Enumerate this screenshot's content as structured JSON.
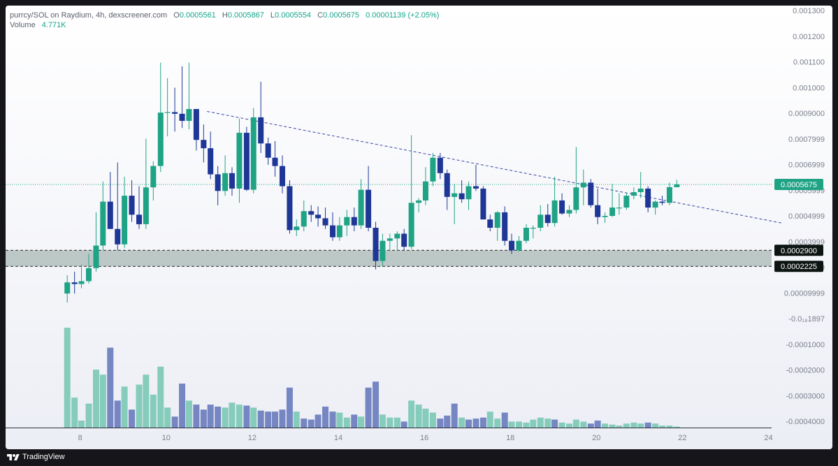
{
  "header": {
    "symbol_line": "purrcy/SOL on Raydium, 4h, dexscreener.com",
    "o_label": "O",
    "o_value": "0.0005561",
    "h_label": "H",
    "h_value": "0.0005867",
    "l_label": "L",
    "l_value": "0.0005554",
    "c_label": "C",
    "c_value": "0.0005675",
    "change": "0.00001139 (+2.05%)",
    "volume_label": "Volume",
    "volume_value": "4.771K"
  },
  "footer": {
    "brand": "TradingView"
  },
  "colors": {
    "up": "#1fa385",
    "down": "#1e3696",
    "vol_up": "#86ccbb",
    "vol_down": "#7586c3",
    "support_zone": "#a9b8b4",
    "trendline": "#3a46a0"
  },
  "chart_data": {
    "type": "candlestick",
    "timeframe": "4h",
    "y_tick_labels": [
      "0.001300",
      "0.001200",
      "0.001100",
      "0.001000",
      "0.0009000",
      "0.0007999",
      "0.0006999",
      "0.0005999",
      "0.0004999",
      "0.0003999",
      "0.0001999",
      "0.00009999",
      "-0.0₁₈1897",
      "-0.0001000",
      "-0.0002000",
      "-0.0003000",
      "-0.0004000"
    ],
    "x_tick_labels": [
      "8",
      "10",
      "12",
      "14",
      "16",
      "18",
      "20",
      "22",
      "24"
    ],
    "ylim": [
      -0.00043,
      0.0013
    ],
    "xlim": [
      7.55,
      24.3
    ],
    "price_tags": [
      {
        "label": "0.0005675",
        "value": 0.0005675,
        "style": "last"
      },
      {
        "label": "0.0002900",
        "value": 0.00029,
        "style": "level"
      },
      {
        "label": "0.0002225",
        "value": 0.0002225,
        "style": "level"
      }
    ],
    "support_zone": [
      0.0002225,
      0.00029
    ],
    "trendline": {
      "x0": 10.95,
      "y0": 0.000875,
      "x1": 24.3,
      "y1": 0.000405
    },
    "candles": [
      {
        "x": 7.7,
        "o": 0.000108,
        "h": 0.000185,
        "l": 7e-05,
        "c": 0.000155
      },
      {
        "x": 7.87,
        "o": 0.000155,
        "h": 0.0002,
        "l": 0.000108,
        "c": 0.000148
      },
      {
        "x": 8.03,
        "o": 0.000148,
        "h": 0.00023,
        "l": 0.00013,
        "c": 0.00016
      },
      {
        "x": 8.2,
        "o": 0.00016,
        "h": 0.000275,
        "l": 0.00015,
        "c": 0.000215
      },
      {
        "x": 8.37,
        "o": 0.000215,
        "h": 0.00045,
        "l": 0.0002,
        "c": 0.00031
      },
      {
        "x": 8.53,
        "o": 0.00031,
        "h": 0.00058,
        "l": 0.00029,
        "c": 0.000495
      },
      {
        "x": 8.7,
        "o": 0.000495,
        "h": 0.00062,
        "l": 0.00038,
        "c": 0.00038
      },
      {
        "x": 8.87,
        "o": 0.00038,
        "h": 0.00066,
        "l": 0.00029,
        "c": 0.000315
      },
      {
        "x": 9.03,
        "o": 0.000315,
        "h": 0.0006,
        "l": 0.0003,
        "c": 0.00052
      },
      {
        "x": 9.2,
        "o": 0.00052,
        "h": 0.000585,
        "l": 0.00041,
        "c": 0.00044
      },
      {
        "x": 9.37,
        "o": 0.00044,
        "h": 0.00056,
        "l": 0.00038,
        "c": 0.0004
      },
      {
        "x": 9.53,
        "o": 0.0004,
        "h": 0.00076,
        "l": 0.00038,
        "c": 0.000555
      },
      {
        "x": 9.7,
        "o": 0.000555,
        "h": 0.000665,
        "l": 0.0005,
        "c": 0.000645
      },
      {
        "x": 9.87,
        "o": 0.000645,
        "h": 0.00108,
        "l": 0.00062,
        "c": 0.00087
      },
      {
        "x": 10.03,
        "o": 0.00087,
        "h": 0.001015,
        "l": 0.00077,
        "c": 0.000872
      },
      {
        "x": 10.2,
        "o": 0.000872,
        "h": 0.000975,
        "l": 0.00079,
        "c": 0.000865
      },
      {
        "x": 10.37,
        "o": 0.000865,
        "h": 0.001065,
        "l": 0.000805,
        "c": 0.000835
      },
      {
        "x": 10.53,
        "o": 0.000835,
        "h": 0.00108,
        "l": 0.0008,
        "c": 0.000885
      },
      {
        "x": 10.7,
        "o": 0.000885,
        "h": 0.000885,
        "l": 0.00071,
        "c": 0.000755
      },
      {
        "x": 10.87,
        "o": 0.000755,
        "h": 0.00082,
        "l": 0.00066,
        "c": 0.00072
      },
      {
        "x": 11.03,
        "o": 0.00072,
        "h": 0.00079,
        "l": 0.00059,
        "c": 0.00061
      },
      {
        "x": 11.2,
        "o": 0.00061,
        "h": 0.000645,
        "l": 0.00048,
        "c": 0.00054
      },
      {
        "x": 11.37,
        "o": 0.00054,
        "h": 0.00069,
        "l": 0.00052,
        "c": 0.000615
      },
      {
        "x": 11.53,
        "o": 0.000615,
        "h": 0.00064,
        "l": 0.00052,
        "c": 0.00055
      },
      {
        "x": 11.7,
        "o": 0.00055,
        "h": 0.000845,
        "l": 0.00049,
        "c": 0.000785
      },
      {
        "x": 11.87,
        "o": 0.000785,
        "h": 0.00081,
        "l": 0.00054,
        "c": 0.000545
      },
      {
        "x": 12.03,
        "o": 0.000545,
        "h": 0.00089,
        "l": 0.00053,
        "c": 0.00085
      },
      {
        "x": 12.2,
        "o": 0.00085,
        "h": 0.001,
        "l": 0.0007,
        "c": 0.00074
      },
      {
        "x": 12.37,
        "o": 0.00074,
        "h": 0.000765,
        "l": 0.00065,
        "c": 0.00068
      },
      {
        "x": 12.53,
        "o": 0.00068,
        "h": 0.00075,
        "l": 0.0006,
        "c": 0.000645
      },
      {
        "x": 12.7,
        "o": 0.000645,
        "h": 0.00069,
        "l": 0.00053,
        "c": 0.00056
      },
      {
        "x": 12.87,
        "o": 0.00056,
        "h": 0.000585,
        "l": 0.00036,
        "c": 0.000375
      },
      {
        "x": 13.03,
        "o": 0.000375,
        "h": 0.00042,
        "l": 0.00035,
        "c": 0.00039
      },
      {
        "x": 13.2,
        "o": 0.00039,
        "h": 0.0005,
        "l": 0.00037,
        "c": 0.000455
      },
      {
        "x": 13.37,
        "o": 0.000455,
        "h": 0.00048,
        "l": 0.00041,
        "c": 0.00044
      },
      {
        "x": 13.53,
        "o": 0.00044,
        "h": 0.000475,
        "l": 0.00039,
        "c": 0.000425
      },
      {
        "x": 13.7,
        "o": 0.000425,
        "h": 0.00047,
        "l": 0.00038,
        "c": 0.000395
      },
      {
        "x": 13.87,
        "o": 0.000395,
        "h": 0.00045,
        "l": 0.00033,
        "c": 0.000345
      },
      {
        "x": 14.03,
        "o": 0.000345,
        "h": 0.00043,
        "l": 0.00033,
        "c": 0.000395
      },
      {
        "x": 14.2,
        "o": 0.000395,
        "h": 0.00046,
        "l": 0.00035,
        "c": 0.00043
      },
      {
        "x": 14.37,
        "o": 0.00043,
        "h": 0.00047,
        "l": 0.00037,
        "c": 0.000395
      },
      {
        "x": 14.53,
        "o": 0.000395,
        "h": 0.00059,
        "l": 0.00038,
        "c": 0.000545
      },
      {
        "x": 14.7,
        "o": 0.000545,
        "h": 0.000645,
        "l": 0.00037,
        "c": 0.000385
      },
      {
        "x": 14.87,
        "o": 0.000385,
        "h": 0.00041,
        "l": 0.00021,
        "c": 0.000245
      },
      {
        "x": 15.03,
        "o": 0.000245,
        "h": 0.00036,
        "l": 0.000225,
        "c": 0.00033
      },
      {
        "x": 15.2,
        "o": 0.00033,
        "h": 0.00036,
        "l": 0.00029,
        "c": 0.00034
      },
      {
        "x": 15.37,
        "o": 0.00034,
        "h": 0.00037,
        "l": 0.00029,
        "c": 0.00036
      },
      {
        "x": 15.53,
        "o": 0.00036,
        "h": 0.00038,
        "l": 0.00029,
        "c": 0.000305
      },
      {
        "x": 15.7,
        "o": 0.000305,
        "h": 0.000775,
        "l": 0.000295,
        "c": 0.00049
      },
      {
        "x": 15.87,
        "o": 0.00049,
        "h": 0.00051,
        "l": 0.00045,
        "c": 0.0005
      },
      {
        "x": 16.03,
        "o": 0.0005,
        "h": 0.00064,
        "l": 0.00048,
        "c": 0.00058
      },
      {
        "x": 16.2,
        "o": 0.00058,
        "h": 0.0007,
        "l": 0.00056,
        "c": 0.00068
      },
      {
        "x": 16.37,
        "o": 0.00068,
        "h": 0.0007,
        "l": 0.00059,
        "c": 0.000615
      },
      {
        "x": 16.53,
        "o": 0.000615,
        "h": 0.00063,
        "l": 0.00046,
        "c": 0.000515
      },
      {
        "x": 16.7,
        "o": 0.000515,
        "h": 0.00057,
        "l": 0.0004,
        "c": 0.00053
      },
      {
        "x": 16.87,
        "o": 0.00053,
        "h": 0.000585,
        "l": 0.00049,
        "c": 0.000505
      },
      {
        "x": 17.03,
        "o": 0.000505,
        "h": 0.00058,
        "l": 0.00046,
        "c": 0.00056
      },
      {
        "x": 17.2,
        "o": 0.00056,
        "h": 0.00065,
        "l": 0.00054,
        "c": 0.00055
      },
      {
        "x": 17.37,
        "o": 0.00055,
        "h": 0.00056,
        "l": 0.00042,
        "c": 0.00042
      },
      {
        "x": 17.53,
        "o": 0.00042,
        "h": 0.00044,
        "l": 0.00037,
        "c": 0.000385
      },
      {
        "x": 17.7,
        "o": 0.000385,
        "h": 0.000455,
        "l": 0.00033,
        "c": 0.00045
      },
      {
        "x": 17.87,
        "o": 0.00045,
        "h": 0.000475,
        "l": 0.00031,
        "c": 0.00033
      },
      {
        "x": 18.03,
        "o": 0.00033,
        "h": 0.00036,
        "l": 0.000275,
        "c": 0.00029
      },
      {
        "x": 18.2,
        "o": 0.00029,
        "h": 0.00035,
        "l": 0.000285,
        "c": 0.00033
      },
      {
        "x": 18.37,
        "o": 0.00033,
        "h": 0.0004,
        "l": 0.00032,
        "c": 0.000385
      },
      {
        "x": 18.53,
        "o": 0.000385,
        "h": 0.000395,
        "l": 0.00034,
        "c": 0.000385
      },
      {
        "x": 18.7,
        "o": 0.000385,
        "h": 0.00048,
        "l": 0.00037,
        "c": 0.00044
      },
      {
        "x": 18.87,
        "o": 0.00044,
        "h": 0.000485,
        "l": 0.00039,
        "c": 0.000405
      },
      {
        "x": 19.03,
        "o": 0.000405,
        "h": 0.0006,
        "l": 0.00039,
        "c": 0.0005
      },
      {
        "x": 19.2,
        "o": 0.0005,
        "h": 0.00053,
        "l": 0.00044,
        "c": 0.000445
      },
      {
        "x": 19.37,
        "o": 0.000445,
        "h": 0.00048,
        "l": 0.00043,
        "c": 0.00046
      },
      {
        "x": 19.53,
        "o": 0.00046,
        "h": 0.000725,
        "l": 0.000445,
        "c": 0.000555
      },
      {
        "x": 19.7,
        "o": 0.000555,
        "h": 0.00063,
        "l": 0.00048,
        "c": 0.000575
      },
      {
        "x": 19.87,
        "o": 0.000575,
        "h": 0.00059,
        "l": 0.00047,
        "c": 0.00048
      },
      {
        "x": 20.03,
        "o": 0.00048,
        "h": 0.00055,
        "l": 0.0004,
        "c": 0.00043
      },
      {
        "x": 20.2,
        "o": 0.00043,
        "h": 0.00045,
        "l": 0.000405,
        "c": 0.000435
      },
      {
        "x": 20.37,
        "o": 0.000435,
        "h": 0.00057,
        "l": 0.00043,
        "c": 0.00047
      },
      {
        "x": 20.53,
        "o": 0.00047,
        "h": 0.00053,
        "l": 0.00044,
        "c": 0.00047
      },
      {
        "x": 20.7,
        "o": 0.00047,
        "h": 0.00053,
        "l": 0.00046,
        "c": 0.00052
      },
      {
        "x": 20.87,
        "o": 0.00052,
        "h": 0.000555,
        "l": 0.000505,
        "c": 0.000535
      },
      {
        "x": 21.03,
        "o": 0.000535,
        "h": 0.00062,
        "l": 0.00051,
        "c": 0.00055
      },
      {
        "x": 21.2,
        "o": 0.00055,
        "h": 0.00056,
        "l": 0.00045,
        "c": 0.00047
      },
      {
        "x": 21.37,
        "o": 0.00047,
        "h": 0.0005,
        "l": 0.00044,
        "c": 0.000495
      },
      {
        "x": 21.53,
        "o": 0.000495,
        "h": 0.00052,
        "l": 0.00048,
        "c": 0.00049
      },
      {
        "x": 21.7,
        "o": 0.00049,
        "h": 0.000575,
        "l": 0.00048,
        "c": 0.000556
      },
      {
        "x": 21.87,
        "o": 0.000556,
        "h": 0.000587,
        "l": 0.000555,
        "c": 0.000568
      }
    ],
    "volume_scale_max": 100,
    "volumes": [
      {
        "x": 7.7,
        "v": 100,
        "up": true
      },
      {
        "x": 7.87,
        "v": 30,
        "up": true
      },
      {
        "x": 8.03,
        "v": 7,
        "up": true
      },
      {
        "x": 8.2,
        "v": 24,
        "up": true
      },
      {
        "x": 8.37,
        "v": 58,
        "up": true
      },
      {
        "x": 8.53,
        "v": 53,
        "up": true
      },
      {
        "x": 8.7,
        "v": 80,
        "up": false
      },
      {
        "x": 8.87,
        "v": 27,
        "up": false
      },
      {
        "x": 9.03,
        "v": 41,
        "up": true
      },
      {
        "x": 9.2,
        "v": 18,
        "up": false
      },
      {
        "x": 9.37,
        "v": 43,
        "up": true
      },
      {
        "x": 9.53,
        "v": 53,
        "up": true
      },
      {
        "x": 9.7,
        "v": 33,
        "up": true
      },
      {
        "x": 9.87,
        "v": 61,
        "up": true
      },
      {
        "x": 10.03,
        "v": 20,
        "up": true
      },
      {
        "x": 10.2,
        "v": 11,
        "up": false
      },
      {
        "x": 10.37,
        "v": 44,
        "up": false
      },
      {
        "x": 10.53,
        "v": 27,
        "up": true
      },
      {
        "x": 10.7,
        "v": 23,
        "up": false
      },
      {
        "x": 10.87,
        "v": 18,
        "up": false
      },
      {
        "x": 11.03,
        "v": 23,
        "up": false
      },
      {
        "x": 11.2,
        "v": 21,
        "up": false
      },
      {
        "x": 11.37,
        "v": 20,
        "up": true
      },
      {
        "x": 11.53,
        "v": 25,
        "up": true
      },
      {
        "x": 11.7,
        "v": 23,
        "up": true
      },
      {
        "x": 11.87,
        "v": 22,
        "up": false
      },
      {
        "x": 12.03,
        "v": 20,
        "up": true
      },
      {
        "x": 12.2,
        "v": 17,
        "up": false
      },
      {
        "x": 12.37,
        "v": 16,
        "up": false
      },
      {
        "x": 12.53,
        "v": 16,
        "up": false
      },
      {
        "x": 12.7,
        "v": 18,
        "up": false
      },
      {
        "x": 12.87,
        "v": 40,
        "up": false
      },
      {
        "x": 13.03,
        "v": 16,
        "up": true
      },
      {
        "x": 13.2,
        "v": 9,
        "up": false
      },
      {
        "x": 13.37,
        "v": 8,
        "up": false
      },
      {
        "x": 13.53,
        "v": 13,
        "up": false
      },
      {
        "x": 13.7,
        "v": 21,
        "up": false
      },
      {
        "x": 13.87,
        "v": 16,
        "up": false
      },
      {
        "x": 14.03,
        "v": 15,
        "up": true
      },
      {
        "x": 14.2,
        "v": 10,
        "up": true
      },
      {
        "x": 14.37,
        "v": 13,
        "up": false
      },
      {
        "x": 14.53,
        "v": 11,
        "up": true
      },
      {
        "x": 14.7,
        "v": 40,
        "up": false
      },
      {
        "x": 14.87,
        "v": 46,
        "up": false
      },
      {
        "x": 15.03,
        "v": 13,
        "up": true
      },
      {
        "x": 15.2,
        "v": 10,
        "up": true
      },
      {
        "x": 15.37,
        "v": 10,
        "up": true
      },
      {
        "x": 15.53,
        "v": 6,
        "up": false
      },
      {
        "x": 15.7,
        "v": 27,
        "up": true
      },
      {
        "x": 15.87,
        "v": 23,
        "up": true
      },
      {
        "x": 16.03,
        "v": 19,
        "up": true
      },
      {
        "x": 16.2,
        "v": 15,
        "up": true
      },
      {
        "x": 16.37,
        "v": 9,
        "up": false
      },
      {
        "x": 16.53,
        "v": 12,
        "up": false
      },
      {
        "x": 16.7,
        "v": 24,
        "up": false
      },
      {
        "x": 16.87,
        "v": 10,
        "up": true
      },
      {
        "x": 17.03,
        "v": 8,
        "up": false
      },
      {
        "x": 17.2,
        "v": 9,
        "up": false
      },
      {
        "x": 17.37,
        "v": 10,
        "up": false
      },
      {
        "x": 17.53,
        "v": 16,
        "up": true
      },
      {
        "x": 17.7,
        "v": 9,
        "up": true
      },
      {
        "x": 17.87,
        "v": 15,
        "up": false
      },
      {
        "x": 18.03,
        "v": 6,
        "up": true
      },
      {
        "x": 18.2,
        "v": 6,
        "up": true
      },
      {
        "x": 18.37,
        "v": 5,
        "up": true
      },
      {
        "x": 18.53,
        "v": 8,
        "up": true
      },
      {
        "x": 18.7,
        "v": 10,
        "up": true
      },
      {
        "x": 18.87,
        "v": 9,
        "up": true
      },
      {
        "x": 19.03,
        "v": 8,
        "up": false
      },
      {
        "x": 19.2,
        "v": 5,
        "up": true
      },
      {
        "x": 19.37,
        "v": 4,
        "up": true
      },
      {
        "x": 19.53,
        "v": 8,
        "up": true
      },
      {
        "x": 19.7,
        "v": 6,
        "up": true
      },
      {
        "x": 19.87,
        "v": 4,
        "up": false
      },
      {
        "x": 20.03,
        "v": 7,
        "up": false
      },
      {
        "x": 20.2,
        "v": 4,
        "up": true
      },
      {
        "x": 20.37,
        "v": 3,
        "up": true
      },
      {
        "x": 20.53,
        "v": 2,
        "up": true
      },
      {
        "x": 20.7,
        "v": 4,
        "up": true
      },
      {
        "x": 20.87,
        "v": 5,
        "up": true
      },
      {
        "x": 21.03,
        "v": 4,
        "up": true
      },
      {
        "x": 21.2,
        "v": 5,
        "up": false
      },
      {
        "x": 21.37,
        "v": 4,
        "up": true
      },
      {
        "x": 21.53,
        "v": 2,
        "up": true
      },
      {
        "x": 21.7,
        "v": 2,
        "up": true
      },
      {
        "x": 21.87,
        "v": 1,
        "up": true
      }
    ]
  }
}
